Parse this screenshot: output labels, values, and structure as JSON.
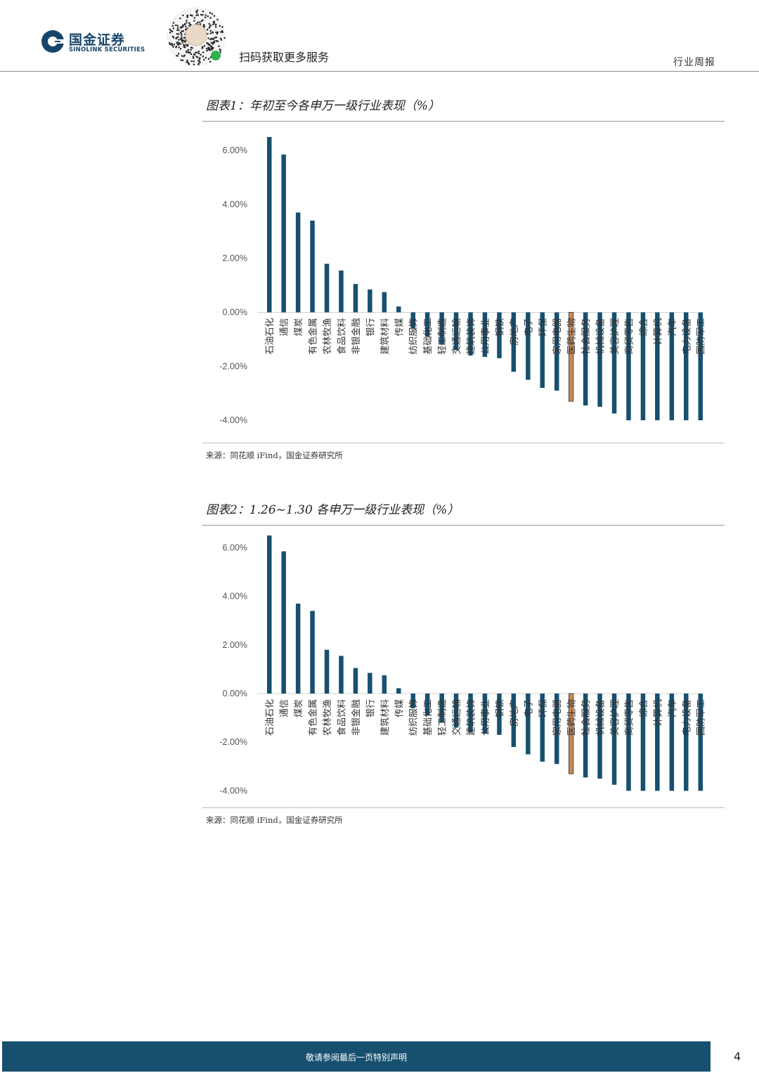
{
  "header": {
    "brand_cn": "国金证券",
    "brand_en": "SINOLINK SECURITIES",
    "qr_caption": "扫码获取更多服务",
    "report_type": "行业周报",
    "brand_color": "#17456a"
  },
  "figures": [
    {
      "title": "图表1：年初至今各申万一级行业表现（%）",
      "source": "来源：同花顺 iFind，国金证券研究所"
    },
    {
      "title": "图表2：1.26~1.30 各申万一级行业表现（%）",
      "source": "来源：同花顺 iFind，国金证券研究所"
    }
  ],
  "chart_data": [
    {
      "type": "bar",
      "title": "图表1：年初至今各申万一级行业表现（%）",
      "categories": [
        "石油石化",
        "通信",
        "煤炭",
        "有色金属",
        "农林牧渔",
        "食品饮料",
        "非银金融",
        "银行",
        "建筑材料",
        "传媒",
        "纺织服饰",
        "基础化工",
        "轻工制造",
        "交通运输",
        "建筑装饰",
        "公用事业",
        "钢铁",
        "房地产",
        "电子",
        "环保",
        "家用电器",
        "医药生物",
        "社会服务",
        "机械设备",
        "美容护理",
        "商贸零售",
        "综合",
        "计算机",
        "汽车",
        "电力设备",
        "国防军工"
      ],
      "values": [
        6.5,
        5.85,
        3.7,
        3.4,
        1.8,
        1.55,
        1.05,
        0.85,
        0.75,
        0.22,
        -0.6,
        -0.9,
        -1.2,
        -1.4,
        -1.6,
        -1.65,
        -1.7,
        -2.2,
        -2.5,
        -2.8,
        -2.9,
        -3.3,
        -3.45,
        -3.5,
        -3.75,
        -4.0,
        -4.0,
        -4.0,
        -4.0,
        -4.0,
        -4.0
      ],
      "highlight_index": 21,
      "colors": {
        "bar": "#17506f",
        "highlight": "#c98a55",
        "highlight_border": "#333333"
      },
      "ylim": [
        -4.0,
        6.0
      ],
      "yticks": [
        -4,
        -2,
        0,
        2,
        4,
        6
      ],
      "ytick_labels": [
        "-4.00%",
        "-2.00%",
        "0.00%",
        "2.00%",
        "4.00%",
        "6.00%"
      ],
      "xlabel": "",
      "ylabel": "",
      "grid": false,
      "legend": "none"
    },
    {
      "type": "bar",
      "title": "图表2：1.26~1.30 各申万一级行业表现（%）",
      "categories": [
        "石油石化",
        "通信",
        "煤炭",
        "有色金属",
        "农林牧渔",
        "食品饮料",
        "非银金融",
        "银行",
        "建筑材料",
        "传媒",
        "纺织服饰",
        "基础化工",
        "轻工制造",
        "交通运输",
        "建筑装饰",
        "公用事业",
        "钢铁",
        "房地产",
        "电子",
        "环保",
        "家用电器",
        "医药生物",
        "社会服务",
        "机械设备",
        "美容护理",
        "商贸零售",
        "综合",
        "计算机",
        "汽车",
        "电力设备",
        "国防军工"
      ],
      "values": [
        6.5,
        5.85,
        3.7,
        3.4,
        1.8,
        1.55,
        1.05,
        0.85,
        0.75,
        0.22,
        -0.6,
        -0.9,
        -1.2,
        -1.4,
        -1.6,
        -1.65,
        -1.7,
        -2.2,
        -2.5,
        -2.8,
        -2.9,
        -3.3,
        -3.45,
        -3.5,
        -3.75,
        -4.0,
        -4.0,
        -4.0,
        -4.0,
        -4.0,
        -4.0
      ],
      "highlight_index": 21,
      "colors": {
        "bar": "#17506f",
        "highlight": "#c98a55",
        "highlight_border": "#333333"
      },
      "ylim": [
        -4.0,
        6.0
      ],
      "yticks": [
        -4,
        -2,
        0,
        2,
        4,
        6
      ],
      "ytick_labels": [
        "-4.00%",
        "-2.00%",
        "0.00%",
        "2.00%",
        "4.00%",
        "6.00%"
      ],
      "xlabel": "",
      "ylabel": "",
      "grid": false,
      "legend": "none"
    }
  ],
  "footer": {
    "disclaimer": "敬请参阅最后一页特别声明",
    "page_number": "4",
    "color": "#17506f"
  }
}
